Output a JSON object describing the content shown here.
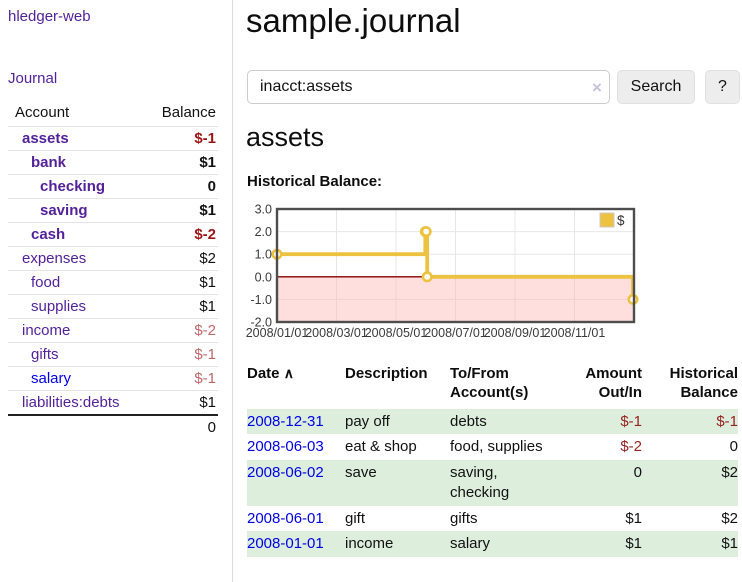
{
  "colors": {
    "purple_link": "#53229b",
    "blue_link": "#0000e8",
    "negative_strong": "#9b1515",
    "negative_muted": "#c06868",
    "table_negative": "#992121",
    "row_green": "#ddeedd",
    "chart_line": "#edc240",
    "chart_negative_fill": "#ffb0b0",
    "chart_zero_line": "#8b0000",
    "button_bg": "#ededed"
  },
  "sidebar": {
    "brand": "hledger-web",
    "journal_link": "Journal",
    "accounts": {
      "col_account": "Account",
      "col_balance": "Balance",
      "rows": [
        {
          "name": "assets",
          "indent": 1,
          "bold": true,
          "link": "purple",
          "balance": "$-1",
          "balance_class": "neg-strong"
        },
        {
          "name": "bank",
          "indent": 2,
          "bold": true,
          "link": "purple",
          "balance": "$1",
          "balance_class": "pos"
        },
        {
          "name": "checking",
          "indent": 3,
          "bold": true,
          "link": "purple",
          "balance": "0",
          "balance_class": "pos"
        },
        {
          "name": "saving",
          "indent": 3,
          "bold": true,
          "link": "purple",
          "balance": "$1",
          "balance_class": "pos"
        },
        {
          "name": "cash",
          "indent": 2,
          "bold": true,
          "link": "purple",
          "balance": "$-2",
          "balance_class": "neg-strong"
        },
        {
          "name": "expenses",
          "indent": 1,
          "bold": false,
          "link": "purple",
          "balance": "$2",
          "balance_class": "pos"
        },
        {
          "name": "food",
          "indent": 2,
          "bold": false,
          "link": "purple",
          "balance": "$1",
          "balance_class": "pos"
        },
        {
          "name": "supplies",
          "indent": 2,
          "bold": false,
          "link": "purple",
          "balance": "$1",
          "balance_class": "pos"
        },
        {
          "name": "income",
          "indent": 1,
          "bold": false,
          "link": "purple",
          "balance": "$-2",
          "balance_class": "neg-muted"
        },
        {
          "name": "gifts",
          "indent": 2,
          "bold": false,
          "link": "purple",
          "balance": "$-1",
          "balance_class": "neg-muted"
        },
        {
          "name": "salary",
          "indent": 2,
          "bold": false,
          "link": "blue",
          "balance": "$-1",
          "balance_class": "neg-muted"
        },
        {
          "name": "liabilities:debts",
          "indent": 1,
          "bold": false,
          "link": "purple",
          "balance": "$1",
          "balance_class": "pos"
        }
      ],
      "total": "0"
    }
  },
  "header": {
    "title": "sample.journal"
  },
  "search": {
    "value": "inacct:assets",
    "clear_icon": "×",
    "search_button": "Search",
    "help_button": "?"
  },
  "account_page": {
    "heading": "assets",
    "chart_title": "Historical Balance:"
  },
  "chart_data": {
    "type": "line",
    "step": true,
    "title": "Historical Balance:",
    "series": [
      {
        "name": "$",
        "color": "#edc240",
        "points": [
          [
            "2008-01-01",
            1
          ],
          [
            "2008-06-01",
            2
          ],
          [
            "2008-06-02",
            2
          ],
          [
            "2008-06-03",
            0
          ],
          [
            "2008-12-31",
            -1
          ]
        ]
      }
    ],
    "x_start": "2008-01-01",
    "x_end": "2009-01-01",
    "x_tick_labels": [
      "2008/01/01",
      "2008/03/01",
      "2008/05/01",
      "2008/07/01",
      "2008/09/01",
      "2008/11/01"
    ],
    "y_tick_labels": [
      "3.0",
      "2.0",
      "1.0",
      "0.0",
      "-1.0",
      "-2.0"
    ],
    "ylim": [
      -2,
      3
    ],
    "grid": true,
    "legend_label": "$",
    "legend_position": "top-right",
    "negative_region_shaded": true
  },
  "register": {
    "headers": {
      "date": "Date",
      "sort_icon": "∧",
      "description": "Description",
      "accounts": "To/From Account(s)",
      "amount": "Amount Out/In",
      "balance": "Historical Balance"
    },
    "rows": [
      {
        "date": "2008-12-31",
        "description": "pay off",
        "accounts": "debts",
        "amount": "$-1",
        "amount_negative": true,
        "balance": "$-1",
        "balance_negative": true
      },
      {
        "date": "2008-06-03",
        "description": "eat & shop",
        "accounts": "food, supplies",
        "amount": "$-2",
        "amount_negative": true,
        "balance": "0",
        "balance_negative": false
      },
      {
        "date": "2008-06-02",
        "description": "save",
        "accounts": "saving, checking",
        "amount": "0",
        "amount_negative": false,
        "balance": "$2",
        "balance_negative": false
      },
      {
        "date": "2008-06-01",
        "description": "gift",
        "accounts": "gifts",
        "amount": "$1",
        "amount_negative": false,
        "balance": "$2",
        "balance_negative": false
      },
      {
        "date": "2008-01-01",
        "description": "income",
        "accounts": "salary",
        "amount": "$1",
        "amount_negative": false,
        "balance": "$1",
        "balance_negative": false
      }
    ]
  }
}
